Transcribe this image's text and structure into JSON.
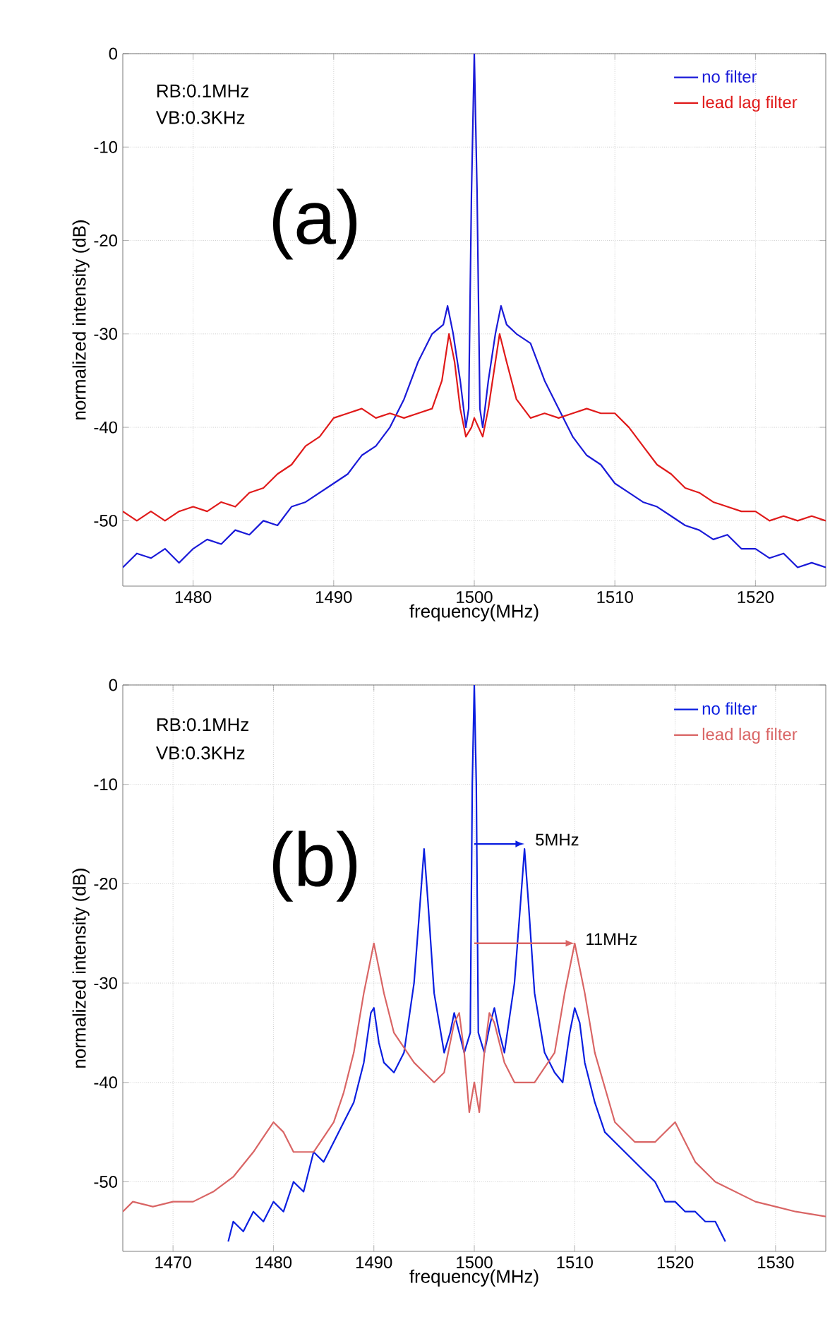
{
  "chart_data": [
    {
      "type": "line",
      "xlabel": "frequency(MHz)",
      "ylabel": "normalized intensity (dB)",
      "xlim": [
        1475,
        1525
      ],
      "ylim": [
        -57,
        0
      ],
      "xticks": [
        1480,
        1490,
        1500,
        1510,
        1520
      ],
      "yticks": [
        0,
        -10,
        -20,
        -30,
        -40,
        -50
      ],
      "grid": true,
      "legend": "top right",
      "annotations": [
        "RB:0.1MHz",
        "VB:0.3KHz",
        "(a)"
      ],
      "series": [
        {
          "name": "no filter",
          "color": "#1a1ad8",
          "x": [
            1475,
            1476,
            1477,
            1478,
            1479,
            1480,
            1481,
            1482,
            1483,
            1484,
            1485,
            1486,
            1487,
            1488,
            1489,
            1490,
            1491,
            1492,
            1493,
            1494,
            1495,
            1496,
            1497,
            1497.8,
            1498.1,
            1498.5,
            1499,
            1499.4,
            1499.6,
            1499.8,
            1500,
            1500.2,
            1500.4,
            1500.6,
            1501,
            1501.5,
            1501.9,
            1502.3,
            1503,
            1504,
            1505,
            1506,
            1507,
            1508,
            1509,
            1510,
            1511,
            1512,
            1513,
            1514,
            1515,
            1516,
            1517,
            1518,
            1519,
            1520,
            1521,
            1522,
            1523,
            1524,
            1525
          ],
          "values": [
            -55,
            -53.5,
            -54,
            -53,
            -54.5,
            -53,
            -52,
            -52.5,
            -51,
            -51.5,
            -50,
            -50.5,
            -48.5,
            -48,
            -47,
            -46,
            -45,
            -43,
            -42,
            -40,
            -37,
            -33,
            -30,
            -29,
            -27,
            -30,
            -35,
            -40,
            -38,
            -15,
            0,
            -15,
            -38,
            -40,
            -35,
            -30,
            -27,
            -29,
            -30,
            -31,
            -35,
            -38,
            -41,
            -43,
            -44,
            -46,
            -47,
            -48,
            -48.5,
            -49.5,
            -50.5,
            -51,
            -52,
            -51.5,
            -53,
            -53,
            -54,
            -53.5,
            -55,
            -54.5,
            -55
          ]
        },
        {
          "name": "lead lag filter",
          "color": "#e01a1a",
          "x": [
            1475,
            1476,
            1477,
            1478,
            1479,
            1480,
            1481,
            1482,
            1483,
            1484,
            1485,
            1486,
            1487,
            1488,
            1489,
            1490,
            1491,
            1492,
            1493,
            1494,
            1495,
            1496,
            1497,
            1497.7,
            1498.2,
            1498.6,
            1499,
            1499.4,
            1499.8,
            1500,
            1500.3,
            1500.6,
            1501,
            1501.5,
            1501.8,
            1502.3,
            1503,
            1504,
            1505,
            1506,
            1507,
            1508,
            1509,
            1510,
            1511,
            1512,
            1513,
            1514,
            1515,
            1516,
            1517,
            1518,
            1519,
            1520,
            1521,
            1522,
            1523,
            1524,
            1525
          ],
          "values": [
            -49,
            -50,
            -49,
            -50,
            -49,
            -48.5,
            -49,
            -48,
            -48.5,
            -47,
            -46.5,
            -45,
            -44,
            -42,
            -41,
            -39,
            -38.5,
            -38,
            -39,
            -38.5,
            -39,
            -38.5,
            -38,
            -35,
            -30,
            -33,
            -38,
            -41,
            -40,
            -39,
            -40,
            -41,
            -38,
            -33,
            -30,
            -33,
            -37,
            -39,
            -38.5,
            -39,
            -38.5,
            -38,
            -38.5,
            -38.5,
            -40,
            -42,
            -44,
            -45,
            -46.5,
            -47,
            -48,
            -48.5,
            -49,
            -49,
            -50,
            -49.5,
            -50,
            -49.5,
            -50
          ]
        }
      ]
    },
    {
      "type": "line",
      "xlabel": "frequency(MHz)",
      "ylabel": "normalized intensity (dB)",
      "xlim": [
        1465,
        1535
      ],
      "ylim": [
        -57,
        0
      ],
      "xticks": [
        1470,
        1480,
        1490,
        1500,
        1510,
        1520,
        1530
      ],
      "yticks": [
        0,
        -10,
        -20,
        -30,
        -40,
        -50
      ],
      "grid": true,
      "legend": "top right",
      "annotations": [
        "RB:0.1MHz",
        "VB:0.3KHz",
        "(b)",
        {
          "text": "5MHz",
          "x": 1505,
          "y": -16
        },
        {
          "text": "11MHz",
          "x": 1510,
          "y": -26
        }
      ],
      "series": [
        {
          "name": "no filter",
          "color": "#0a1ee0",
          "x": [
            1475.5,
            1476,
            1477,
            1478,
            1479,
            1480,
            1481,
            1482,
            1483,
            1484,
            1485,
            1486,
            1487,
            1488,
            1489,
            1489.7,
            1490,
            1490.5,
            1491,
            1492,
            1493,
            1494,
            1494.6,
            1495,
            1495.4,
            1496,
            1497,
            1497.6,
            1498,
            1498.5,
            1499,
            1499.6,
            1499.8,
            1500,
            1500.2,
            1500.4,
            1501,
            1501.6,
            1502,
            1502.5,
            1503,
            1504,
            1504.6,
            1505,
            1505.4,
            1506,
            1507,
            1508,
            1508.8,
            1509.5,
            1510,
            1510.5,
            1511,
            1512,
            1513,
            1514,
            1515,
            1516,
            1517,
            1518,
            1519,
            1520,
            1521,
            1522,
            1523,
            1524,
            1525
          ],
          "values": [
            -56,
            -54,
            -55,
            -53,
            -54,
            -52,
            -53,
            -50,
            -51,
            -47,
            -48,
            -46,
            -44,
            -42,
            -38,
            -33,
            -32.5,
            -36,
            -38,
            -39,
            -37,
            -30,
            -22,
            -16.5,
            -22,
            -31,
            -37,
            -35,
            -33,
            -35,
            -37,
            -35,
            -10,
            0,
            -10,
            -35,
            -37,
            -34,
            -32.5,
            -35,
            -37,
            -30,
            -22,
            -16.5,
            -22,
            -31,
            -37,
            -39,
            -40,
            -35,
            -32.5,
            -34,
            -38,
            -42,
            -45,
            -46,
            -47,
            -48,
            -49,
            -50,
            -52,
            -52,
            -53,
            -53,
            -54,
            -54,
            -56
          ]
        },
        {
          "name": "lead lag filter",
          "color": "#d96565",
          "x": [
            1465,
            1466,
            1468,
            1470,
            1472,
            1474,
            1476,
            1478,
            1479,
            1480,
            1481,
            1482,
            1484,
            1486,
            1487,
            1488,
            1489,
            1490,
            1491,
            1492,
            1494,
            1496,
            1497,
            1498,
            1498.5,
            1499,
            1499.5,
            1500,
            1500.5,
            1501,
            1501.5,
            1502,
            1503,
            1504,
            1506,
            1508,
            1509,
            1510,
            1511,
            1512,
            1514,
            1516,
            1518,
            1519,
            1520,
            1521,
            1522,
            1524,
            1526,
            1528,
            1530,
            1532,
            1535
          ],
          "values": [
            -53,
            -52,
            -52.5,
            -52,
            -52,
            -51,
            -49.5,
            -47,
            -45.5,
            -44,
            -45,
            -47,
            -47,
            -44,
            -41,
            -37,
            -31,
            -26,
            -31,
            -35,
            -38,
            -40,
            -39,
            -34,
            -33,
            -37,
            -43,
            -40,
            -43,
            -37,
            -33,
            -34,
            -38,
            -40,
            -40,
            -37,
            -31,
            -26,
            -31,
            -37,
            -44,
            -46,
            -46,
            -45,
            -44,
            -46,
            -48,
            -50,
            -51,
            -52,
            -52.5,
            -53,
            -53.5
          ]
        }
      ]
    }
  ]
}
